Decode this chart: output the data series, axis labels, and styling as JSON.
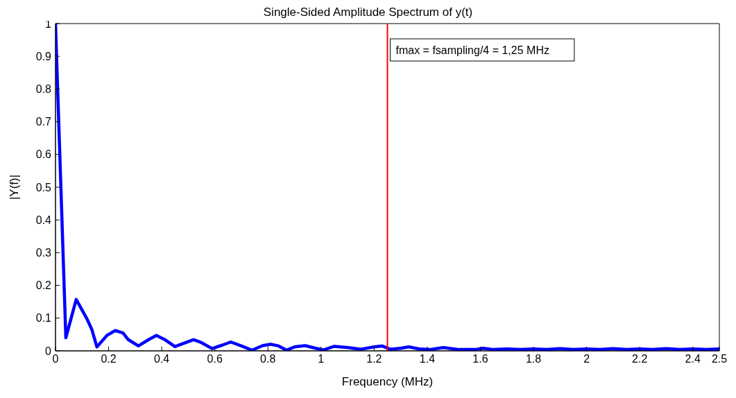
{
  "chart_data": {
    "type": "line",
    "title": "Single-Sided Amplitude Spectrum of y(t)",
    "xlabel": "Frequency (MHz)",
    "ylabel": "|Y(f)|",
    "x": [
      0,
      0.039,
      0.078,
      0.117,
      0.137,
      0.156,
      0.195,
      0.225,
      0.254,
      0.273,
      0.312,
      0.352,
      0.38,
      0.41,
      0.45,
      0.49,
      0.52,
      0.55,
      0.59,
      0.63,
      0.66,
      0.7,
      0.74,
      0.78,
      0.81,
      0.84,
      0.87,
      0.9,
      0.94,
      0.98,
      1.01,
      1.05,
      1.1,
      1.15,
      1.2,
      1.23,
      1.26,
      1.3,
      1.33,
      1.37,
      1.41,
      1.46,
      1.52,
      1.58,
      1.61,
      1.65,
      1.7,
      1.75,
      1.8,
      1.85,
      1.9,
      1.95,
      2,
      2.05,
      2.1,
      2.15,
      2.2,
      2.25,
      2.3,
      2.35,
      2.4,
      2.45,
      2.5
    ],
    "series": [
      {
        "color": "#0000ff",
        "values": [
          1.0,
          0.04,
          0.157,
          0.1,
          0.065,
          0.012,
          0.048,
          0.062,
          0.055,
          0.035,
          0.015,
          0.035,
          0.047,
          0.035,
          0.013,
          0.025,
          0.034,
          0.025,
          0.007,
          0.018,
          0.027,
          0.015,
          0.002,
          0.016,
          0.02,
          0.015,
          0.002,
          0.012,
          0.016,
          0.008,
          0.003,
          0.014,
          0.01,
          0.005,
          0.012,
          0.015,
          0.005,
          0.008,
          0.012,
          0.006,
          0.004,
          0.01,
          0.004,
          0.004,
          0.008,
          0.004,
          0.006,
          0.004,
          0.006,
          0.004,
          0.007,
          0.004,
          0.006,
          0.004,
          0.007,
          0.004,
          0.006,
          0.004,
          0.007,
          0.004,
          0.006,
          0.004,
          0.006
        ]
      }
    ],
    "xlim": [
      0,
      2.5
    ],
    "xticks": [
      0,
      0.2,
      0.4,
      0.6,
      0.8,
      1,
      1.2,
      1.4,
      1.6,
      1.8,
      2,
      2.2,
      2.4,
      2.5
    ],
    "ylim": [
      0,
      1
    ],
    "yticks": [
      0,
      0.1,
      0.2,
      0.3,
      0.4,
      0.5,
      0.6,
      0.7,
      0.8,
      0.9,
      1
    ],
    "ref_lines": [
      {
        "axis": "x",
        "value": 1.25,
        "label": "fmax = fsampling/4 = 1,25 MHz",
        "color": "#ff0000"
      }
    ],
    "grid": false,
    "marker": "none",
    "line_style": "solid"
  }
}
